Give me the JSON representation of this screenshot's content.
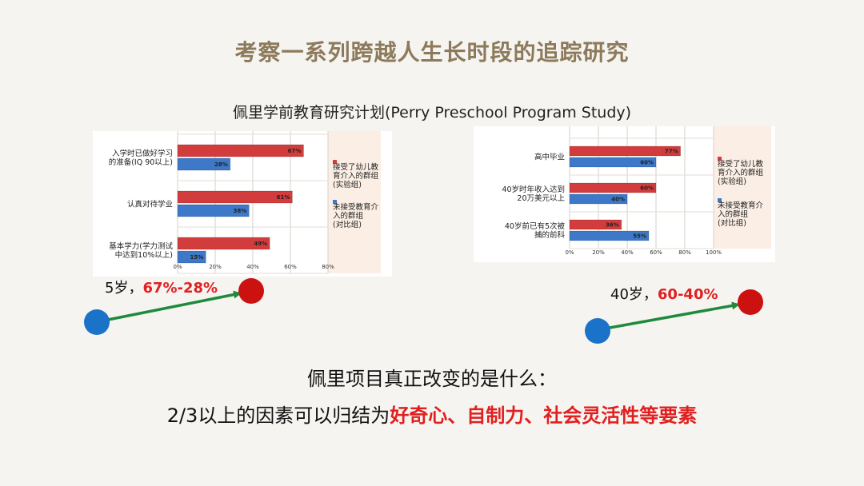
{
  "page": {
    "title": "考察一系列跨越人生长时段的追踪研究",
    "subtitle": "佩里学前教育研究计划(Perry Preschool Program Study)"
  },
  "chart_data": [
    {
      "type": "bar",
      "orientation": "horizontal",
      "categories": [
        "入学时已做好学习的准备(IQ 90以上)",
        "认真对待学业",
        "基本学力(学力测试中达到10%以上)"
      ],
      "category_lines": [
        [
          "入学时已做好学习",
          "的准备(IQ 90以上)"
        ],
        [
          "认真对待学业"
        ],
        [
          "基本学力(学力测试",
          "中达到10%以上)"
        ]
      ],
      "series": [
        {
          "name": "接受了幼儿教育介入的群组(实验组)",
          "name_lines": [
            "接受了幼儿教",
            "育介入的群组",
            "(实验组)"
          ],
          "values": [
            67,
            61,
            49
          ],
          "color": "#d23c3c"
        },
        {
          "name": "未接受教育介入的群组(对比组)",
          "name_lines": [
            "未接受教育介",
            "入的群组",
            "(对比组)"
          ],
          "values": [
            28,
            38,
            15
          ],
          "color": "#3e78c8"
        }
      ],
      "value_labels": [
        [
          "67%",
          "61%",
          "49%"
        ],
        [
          "28%",
          "38%",
          "15%"
        ]
      ],
      "xlim": [
        0,
        80
      ],
      "x_ticks": [
        "0%",
        "20%",
        "40%",
        "60%",
        "80%"
      ],
      "grid": true,
      "legend": "right"
    },
    {
      "type": "bar",
      "orientation": "horizontal",
      "categories": [
        "高中毕业",
        "40岁时年收入达到20万美元以上",
        "40岁前已有5次被捕的前科"
      ],
      "category_lines": [
        [
          "高中毕业"
        ],
        [
          "40岁时年收入达到",
          "20万美元以上"
        ],
        [
          "40岁前已有5次被",
          "捕的前科"
        ]
      ],
      "series": [
        {
          "name": "接受了幼儿教育介入的群组(实验组)",
          "name_lines": [
            "接受了幼儿教",
            "育介入的群组",
            "(实验组)"
          ],
          "values": [
            77,
            60,
            36
          ],
          "color": "#d23c3c"
        },
        {
          "name": "未接受教育介入的群组(对比组)",
          "name_lines": [
            "未接受教育介",
            "入的群组",
            "(对比组)"
          ],
          "values": [
            60,
            40,
            55
          ],
          "color": "#3e78c8"
        }
      ],
      "value_labels": [
        [
          "77%",
          "60%",
          "36%"
        ],
        [
          "60%",
          "40%",
          "55%"
        ]
      ],
      "xlim": [
        0,
        100
      ],
      "x_ticks": [
        "0%",
        "20%",
        "40%",
        "60%",
        "80%",
        "100%"
      ],
      "grid": true,
      "legend": "right"
    }
  ],
  "annotations": {
    "left": {
      "prefix": "5岁，",
      "value": "67%-28%"
    },
    "right": {
      "prefix": "40岁，",
      "value": "60-40%"
    }
  },
  "question": "佩里项目真正改变的是什么：",
  "conclusion": {
    "prefix": "2/3以上的因素可以归结为",
    "highlight": "好奇心、自制力、社会灵活性等要素"
  },
  "colors": {
    "title": "#8c7a5b",
    "highlight": "#e02020",
    "dot_red": "#cc1111",
    "dot_blue": "#1a73c8",
    "arrow": "#1f8a3c"
  }
}
